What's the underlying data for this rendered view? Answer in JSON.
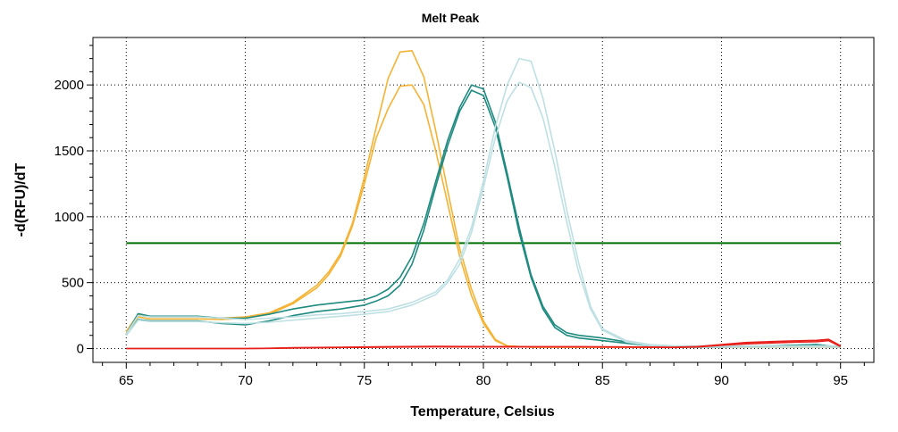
{
  "chart_data": {
    "type": "line",
    "title": "Melt Peak",
    "xlabel": "Temperature, Celsius",
    "ylabel": "-d(RFU)/dT",
    "xlim": [
      63.6,
      96.4
    ],
    "ylim": [
      -105,
      2360
    ],
    "xticks": [
      65,
      70,
      75,
      80,
      85,
      90,
      95
    ],
    "yticks": [
      0,
      500,
      1000,
      1500,
      2000
    ],
    "grid": true,
    "threshold": {
      "value": 800,
      "x": [
        65,
        95
      ],
      "color": "#007000"
    },
    "series": [
      {
        "color": "#f5b335",
        "x": [
          65,
          65.5,
          66,
          67,
          68,
          69,
          70,
          71,
          72,
          73,
          73.5,
          74,
          74.5,
          75,
          75.5,
          76,
          76.5,
          77,
          77.5,
          78,
          78.5,
          79,
          79.5,
          80,
          80.5,
          81,
          82,
          83,
          84,
          85,
          87,
          90,
          93,
          95
        ],
        "y": [
          130,
          260,
          240,
          240,
          240,
          230,
          240,
          270,
          350,
          480,
          580,
          720,
          950,
          1300,
          1680,
          2050,
          2250,
          2260,
          2060,
          1650,
          1200,
          760,
          450,
          210,
          70,
          20,
          10,
          10,
          10,
          10,
          10,
          10,
          10,
          10
        ]
      },
      {
        "color": "#f5b335",
        "x": [
          65,
          65.5,
          66,
          67,
          68,
          69,
          70,
          71,
          72,
          73,
          73.5,
          74,
          74.5,
          75,
          75.5,
          76,
          76.5,
          77,
          77.5,
          78,
          78.5,
          79,
          79.5,
          80,
          80.5,
          81,
          82,
          83,
          84,
          85,
          87,
          90,
          93,
          95
        ],
        "y": [
          120,
          240,
          225,
          225,
          225,
          220,
          230,
          260,
          340,
          460,
          560,
          700,
          930,
          1250,
          1600,
          1820,
          1990,
          2000,
          1850,
          1500,
          1100,
          700,
          400,
          190,
          60,
          20,
          10,
          10,
          10,
          10,
          10,
          10,
          10,
          10
        ]
      },
      {
        "color": "#1f8a80",
        "x": [
          65,
          65.5,
          66,
          67,
          68,
          69,
          70,
          71,
          72,
          73,
          74,
          75,
          75.5,
          76,
          76.5,
          77,
          77.5,
          78,
          78.5,
          79,
          79.5,
          80,
          80.5,
          81,
          81.5,
          82,
          82.5,
          83,
          83.5,
          84,
          85,
          86,
          87,
          88,
          89,
          90,
          91,
          92,
          93,
          94,
          95
        ],
        "y": [
          110,
          265,
          245,
          245,
          245,
          230,
          230,
          260,
          300,
          330,
          350,
          370,
          400,
          450,
          540,
          700,
          950,
          1270,
          1580,
          1830,
          2000,
          1970,
          1720,
          1330,
          920,
          560,
          320,
          180,
          120,
          100,
          80,
          50,
          20,
          10,
          10,
          10,
          15,
          20,
          25,
          30,
          10
        ]
      },
      {
        "color": "#1f8a80",
        "x": [
          65,
          65.5,
          66,
          67,
          68,
          69,
          70,
          71,
          72,
          73,
          74,
          75,
          75.5,
          76,
          76.5,
          77,
          77.5,
          78,
          78.5,
          79,
          79.5,
          80,
          80.5,
          81,
          81.5,
          82,
          82.5,
          83,
          83.5,
          84,
          85,
          86,
          87,
          88,
          89,
          90,
          91,
          92,
          93,
          94,
          95
        ],
        "y": [
          100,
          220,
          210,
          210,
          210,
          190,
          180,
          210,
          250,
          280,
          300,
          330,
          360,
          400,
          480,
          640,
          900,
          1230,
          1540,
          1800,
          1960,
          1920,
          1680,
          1300,
          880,
          540,
          300,
          160,
          100,
          80,
          60,
          40,
          20,
          10,
          10,
          10,
          15,
          20,
          25,
          30,
          10
        ]
      },
      {
        "color": "#bfe0e3",
        "x": [
          65,
          65.5,
          66,
          67,
          68,
          69,
          70,
          71,
          72,
          73,
          74,
          75,
          76,
          77,
          78,
          78.5,
          79,
          79.5,
          80,
          80.5,
          81,
          81.5,
          82,
          82.5,
          83,
          83.5,
          84,
          84.5,
          85,
          86,
          87,
          88,
          90,
          92,
          94,
          95
        ],
        "y": [
          110,
          250,
          240,
          240,
          240,
          230,
          220,
          230,
          240,
          255,
          265,
          280,
          300,
          350,
          430,
          520,
          680,
          920,
          1270,
          1680,
          2000,
          2200,
          2180,
          1900,
          1500,
          1050,
          650,
          320,
          150,
          60,
          30,
          20,
          20,
          20,
          20,
          20
        ]
      },
      {
        "color": "#bfe0e3",
        "x": [
          65,
          65.5,
          66,
          67,
          68,
          69,
          70,
          71,
          72,
          73,
          74,
          75,
          76,
          77,
          78,
          78.5,
          79,
          79.5,
          80,
          80.5,
          81,
          81.5,
          82,
          82.5,
          83,
          83.5,
          84,
          84.5,
          85,
          86,
          87,
          88,
          90,
          92,
          94,
          95
        ],
        "y": [
          100,
          215,
          205,
          205,
          205,
          195,
          190,
          200,
          215,
          230,
          245,
          260,
          280,
          330,
          410,
          500,
          640,
          880,
          1220,
          1600,
          1880,
          2020,
          1980,
          1750,
          1380,
          960,
          580,
          300,
          140,
          50,
          20,
          10,
          10,
          10,
          10,
          10
        ]
      },
      {
        "color": "#e8201b",
        "x": [
          65,
          68,
          70,
          71,
          72,
          74,
          76,
          78,
          80,
          82,
          84,
          86,
          88,
          89,
          90,
          91,
          92,
          93,
          94,
          94.5,
          95
        ],
        "y": [
          0,
          0,
          0,
          2,
          6,
          10,
          14,
          16,
          15,
          14,
          14,
          12,
          10,
          15,
          30,
          45,
          52,
          58,
          62,
          70,
          20
        ]
      },
      {
        "color": "#e8201b",
        "x": [
          65,
          68,
          70,
          71,
          72,
          74,
          76,
          78,
          80,
          82,
          84,
          86,
          88,
          89,
          90,
          91,
          92,
          93,
          94,
          94.5,
          95
        ],
        "y": [
          0,
          0,
          0,
          1,
          4,
          8,
          11,
          13,
          12,
          12,
          12,
          10,
          8,
          12,
          25,
          35,
          42,
          48,
          52,
          60,
          15
        ]
      }
    ]
  }
}
